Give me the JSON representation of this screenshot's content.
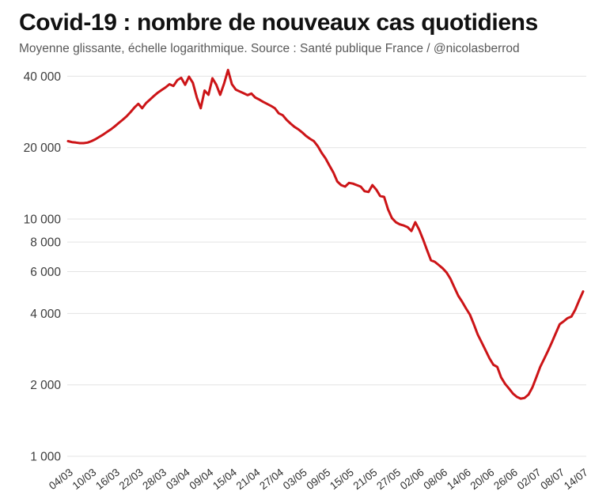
{
  "header": {
    "title": "Covid-19 : nombre de nouveaux cas quotidiens",
    "subtitle": "Moyenne glissante, échelle logarithmique. Source : Santé publique France / @nicolasberrod"
  },
  "chart_data": {
    "type": "line",
    "title": "Covid-19 : nombre de nouveaux cas quotidiens",
    "subtitle": "Moyenne glissante, échelle logarithmique. Source : Santé publique France / @nicolasberrod",
    "scale_y": "log10",
    "grid": "horizontal",
    "legend": "none",
    "line_color": "#cc1417",
    "ylim": [
      1000,
      42500
    ],
    "y_ticks": [
      {
        "value": 1000,
        "label": "1 000"
      },
      {
        "value": 2000,
        "label": "2 000"
      },
      {
        "value": 4000,
        "label": "4 000"
      },
      {
        "value": 6000,
        "label": "6 000"
      },
      {
        "value": 8000,
        "label": "8 000"
      },
      {
        "value": 10000,
        "label": "10 000"
      },
      {
        "value": 20000,
        "label": "20 000"
      },
      {
        "value": 40000,
        "label": "40 000"
      }
    ],
    "x_ticks": [
      "04/03",
      "10/03",
      "16/03",
      "22/03",
      "28/03",
      "03/04",
      "09/04",
      "15/04",
      "21/04",
      "27/04",
      "03/05",
      "09/05",
      "15/05",
      "21/05",
      "27/05",
      "02/06",
      "08/06",
      "14/06",
      "20/06",
      "26/06",
      "02/07",
      "08/07",
      "14/07"
    ],
    "x_tick_step_days": 6,
    "dates": [
      "04/03",
      "05/03",
      "06/03",
      "07/03",
      "08/03",
      "09/03",
      "10/03",
      "11/03",
      "12/03",
      "13/03",
      "14/03",
      "15/03",
      "16/03",
      "17/03",
      "18/03",
      "19/03",
      "20/03",
      "21/03",
      "22/03",
      "23/03",
      "24/03",
      "25/03",
      "26/03",
      "27/03",
      "28/03",
      "29/03",
      "30/03",
      "31/03",
      "01/04",
      "02/04",
      "03/04",
      "04/04",
      "05/04",
      "06/04",
      "07/04",
      "08/04",
      "09/04",
      "10/04",
      "11/04",
      "12/04",
      "13/04",
      "14/04",
      "15/04",
      "16/04",
      "17/04",
      "18/04",
      "19/04",
      "20/04",
      "21/04",
      "22/04",
      "23/04",
      "24/04",
      "25/04",
      "26/04",
      "27/04",
      "28/04",
      "29/04",
      "30/04",
      "01/05",
      "02/05",
      "03/05",
      "04/05",
      "05/05",
      "06/05",
      "07/05",
      "08/05",
      "09/05",
      "10/05",
      "11/05",
      "12/05",
      "13/05",
      "14/05",
      "15/05",
      "16/05",
      "17/05",
      "18/05",
      "19/05",
      "20/05",
      "21/05",
      "22/05",
      "23/05",
      "24/05",
      "25/05",
      "26/05",
      "27/05",
      "28/05",
      "29/05",
      "30/05",
      "31/05",
      "01/06",
      "02/06",
      "03/06",
      "04/06",
      "05/06",
      "06/06",
      "07/06",
      "08/06",
      "09/06",
      "10/06",
      "11/06",
      "12/06",
      "13/06",
      "14/06",
      "15/06",
      "16/06",
      "17/06",
      "18/06",
      "19/06",
      "20/06",
      "21/06",
      "22/06",
      "23/06",
      "24/06",
      "25/06",
      "26/06",
      "27/06",
      "28/06",
      "29/06",
      "30/06",
      "01/07",
      "02/07",
      "03/07",
      "04/07",
      "05/07",
      "06/07",
      "07/07",
      "08/07",
      "09/07",
      "10/07",
      "11/07",
      "12/07",
      "13/07",
      "14/07"
    ],
    "values": [
      21300,
      21100,
      21000,
      20900,
      20900,
      21000,
      21300,
      21700,
      22200,
      22700,
      23300,
      23900,
      24600,
      25400,
      26200,
      27100,
      28200,
      29500,
      30600,
      29300,
      30800,
      31900,
      33000,
      34100,
      35000,
      35900,
      37000,
      36400,
      38500,
      39400,
      36800,
      39800,
      37500,
      32500,
      29300,
      34800,
      33400,
      39200,
      36800,
      33400,
      37300,
      42500,
      37000,
      35100,
      34500,
      33900,
      33300,
      33800,
      32500,
      31900,
      31200,
      30600,
      30000,
      29300,
      27900,
      27400,
      26200,
      25300,
      24500,
      23900,
      23200,
      22400,
      21800,
      21300,
      20300,
      19000,
      18000,
      16800,
      15700,
      14400,
      13900,
      13700,
      14200,
      14100,
      13900,
      13700,
      13100,
      13000,
      13900,
      13300,
      12500,
      12400,
      11000,
      10100,
      9700,
      9500,
      9400,
      9250,
      8900,
      9700,
      9000,
      8200,
      7400,
      6700,
      6600,
      6400,
      6200,
      5950,
      5600,
      5150,
      4750,
      4480,
      4200,
      3950,
      3600,
      3260,
      3020,
      2800,
      2590,
      2430,
      2380,
      2150,
      2020,
      1930,
      1840,
      1780,
      1750,
      1760,
      1820,
      1950,
      2150,
      2380,
      2570,
      2780,
      3020,
      3300,
      3600,
      3700,
      3820,
      3880,
      4150,
      4550,
      4950
    ]
  }
}
